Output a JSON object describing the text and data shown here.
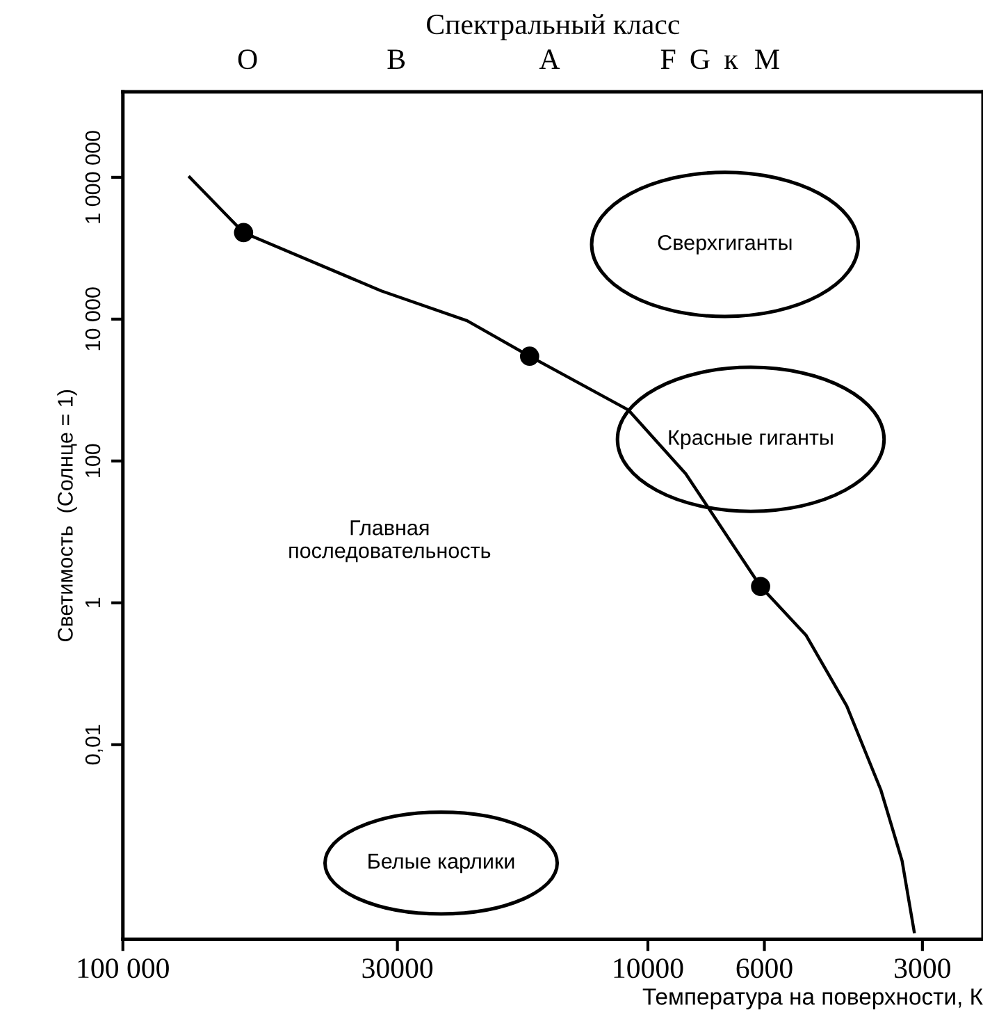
{
  "chart_data": {
    "type": "line",
    "xlabel": "Температура на поверхности, К",
    "ylabel": "Светимость  (Солнце = 1)",
    "x2label": "Спектральный класс",
    "log": "xy",
    "xlim": [
      100000,
      2300
    ],
    "xticks": [
      {
        "value": 100000,
        "label": "100 000"
      },
      30000,
      10000,
      6000,
      3000
    ],
    "ylim": [
      1.8e-05,
      16000000.0
    ],
    "yticks": [
      {
        "value": 1000000,
        "label": "1 000 000"
      },
      {
        "value": 10000,
        "label": "10 000"
      },
      100,
      1,
      {
        "value": 0.01,
        "label": "0,01"
      }
    ],
    "grid": false,
    "series": [
      {
        "color": "#000000",
        "marker": "none",
        "x": [
          74600,
          58900,
          32200,
          22100,
          16800,
          10900,
          8470,
          6890,
          6100,
          5000,
          4180,
          3600,
          3280,
          3110
        ],
        "values": [
          1000000,
          166000,
          25000,
          9500,
          3000,
          525,
          66,
          6.6,
          1.7,
          0.35,
          0.035,
          0.0023,
          0.00023,
          2.3e-05
        ]
      },
      {
        "type": "scatter",
        "color": "#000000",
        "marker": "circle",
        "x": [
          58900,
          16800,
          6100
        ],
        "values": [
          166000,
          3000,
          1.7
        ]
      }
    ],
    "annotations": [
      "Главная\nпоследовательность",
      "Сверхгиганты",
      "Красные гиганты",
      "Белые карлики",
      "O",
      "B",
      "A",
      "F",
      "G",
      "к",
      "M"
    ]
  }
}
